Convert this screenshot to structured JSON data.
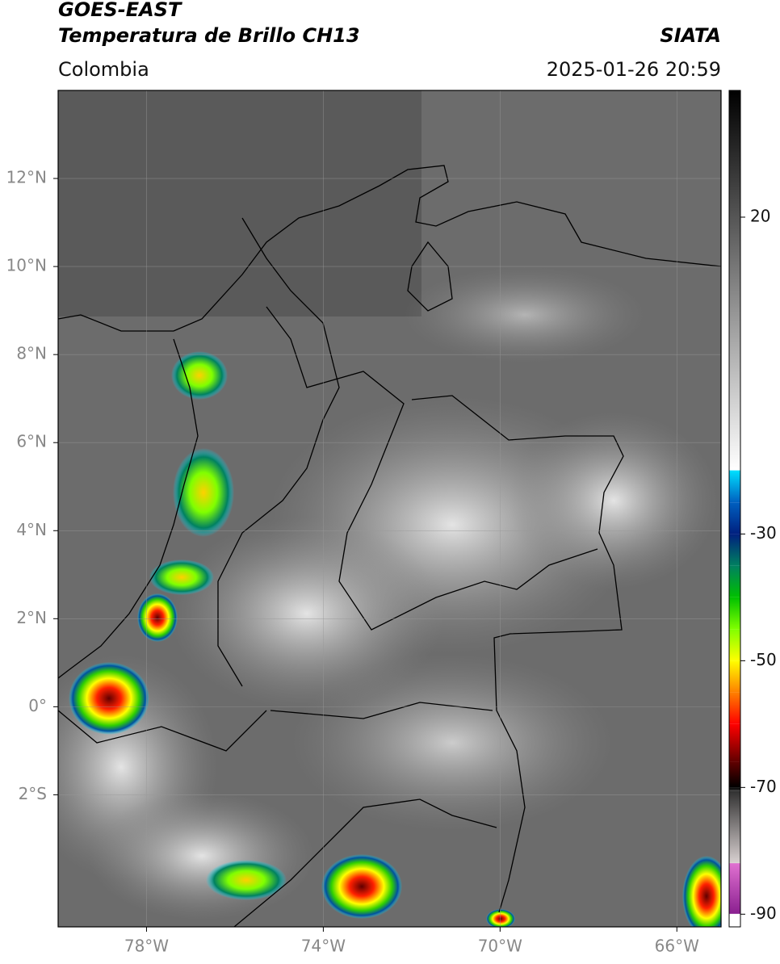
{
  "header": {
    "title": "GOES-EAST",
    "subtitle": "Temperatura de Brillo CH13",
    "source": "SIATA",
    "region": "Colombia",
    "datetime": "2025-01-26 20:59"
  },
  "map": {
    "xlim": [
      -80,
      -65
    ],
    "ylim": [
      -5,
      14
    ],
    "grid": true,
    "xticks": [
      {
        "value": -78,
        "label": "78°W"
      },
      {
        "value": -74,
        "label": "74°W"
      },
      {
        "value": -70,
        "label": "70°W"
      },
      {
        "value": -66,
        "label": "66°W"
      }
    ],
    "yticks": [
      {
        "value": -2,
        "label": "2°S"
      },
      {
        "value": 0,
        "label": "0°"
      },
      {
        "value": 2,
        "label": "2°N"
      },
      {
        "value": 4,
        "label": "4°N"
      },
      {
        "value": 6,
        "label": "6°N"
      },
      {
        "value": 8,
        "label": "8°N"
      },
      {
        "value": 10,
        "label": "10°N"
      },
      {
        "value": 12,
        "label": "12°N"
      }
    ]
  },
  "colorbar": {
    "lim": [
      -92,
      40
    ],
    "ticks": [
      20,
      -30,
      -50,
      -70,
      -90
    ],
    "stops": [
      {
        "value": -92,
        "color": "#ffffff"
      },
      {
        "value": -90,
        "color": "#ffffff"
      },
      {
        "value": -89.9,
        "color": "#8a2090"
      },
      {
        "value": -82,
        "color": "#e070d0"
      },
      {
        "value": -81.9,
        "color": "#d8d0d0"
      },
      {
        "value": -70.5,
        "color": "#303030"
      },
      {
        "value": -70,
        "color": "#000000"
      },
      {
        "value": -66,
        "color": "#600000"
      },
      {
        "value": -60,
        "color": "#ff0000"
      },
      {
        "value": -55,
        "color": "#ff8000"
      },
      {
        "value": -50,
        "color": "#ffff00"
      },
      {
        "value": -45,
        "color": "#80ff00"
      },
      {
        "value": -40,
        "color": "#00c000"
      },
      {
        "value": -35,
        "color": "#008060"
      },
      {
        "value": -30,
        "color": "#00207f"
      },
      {
        "value": -25,
        "color": "#0060c0"
      },
      {
        "value": -20,
        "color": "#00e0ff"
      },
      {
        "value": -19.9,
        "color": "#ffffff"
      },
      {
        "value": 40,
        "color": "#000000"
      }
    ]
  }
}
